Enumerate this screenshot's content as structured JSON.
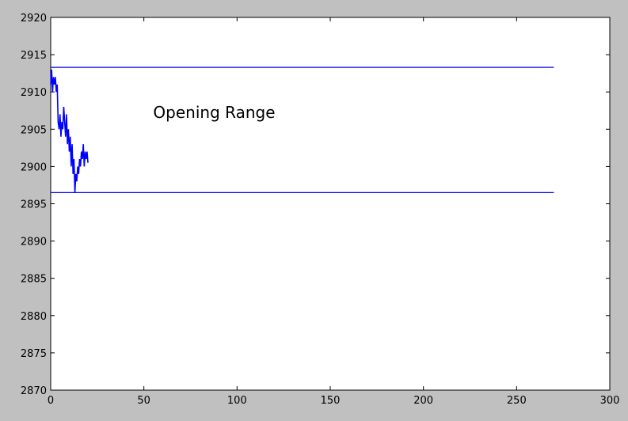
{
  "chart_data": {
    "type": "line",
    "title": "",
    "xlabel": "",
    "ylabel": "",
    "xlim": [
      0,
      300
    ],
    "ylim": [
      2870,
      2920
    ],
    "x_ticks": [
      0,
      50,
      100,
      150,
      200,
      250,
      300
    ],
    "y_ticks": [
      2870,
      2875,
      2880,
      2885,
      2890,
      2895,
      2900,
      2905,
      2910,
      2915,
      2920
    ],
    "x_tick_labels": [
      "0",
      "50",
      "100",
      "150",
      "200",
      "250",
      "300"
    ],
    "y_tick_labels": [
      "2870",
      "2875",
      "2880",
      "2885",
      "2890",
      "2895",
      "2900",
      "2905",
      "2910",
      "2915",
      "2920"
    ],
    "grid": false,
    "series": [
      {
        "color": "#0000ff",
        "x": [
          0,
          0.5,
          1,
          1.5,
          2,
          2.5,
          3,
          3.5,
          4,
          4.5,
          5,
          5.5,
          6,
          6.5,
          7,
          7.5,
          8,
          8.5,
          9,
          9.5,
          10,
          10.5,
          11,
          11.5,
          12,
          12.5,
          13,
          13.5,
          14,
          14.5,
          15,
          15.5,
          16,
          16.5,
          17,
          17.5,
          18,
          18.5,
          19,
          19.5,
          20
        ],
        "y": [
          2911,
          2913,
          2910,
          2912,
          2911,
          2912,
          2910,
          2911,
          2906,
          2905,
          2907,
          2904,
          2906,
          2905,
          2908,
          2906,
          2904,
          2907,
          2903,
          2905,
          2902,
          2904,
          2900,
          2903,
          2899,
          2901,
          2896.5,
          2899,
          2898,
          2900,
          2899,
          2901,
          2900,
          2902,
          2901,
          2903,
          2900,
          2902,
          2901,
          2902,
          2900.5
        ]
      },
      {
        "color": "#0000ff",
        "x": [
          0,
          270
        ],
        "y": [
          2913.3,
          2913.3
        ]
      },
      {
        "color": "#0000ff",
        "x": [
          0,
          270
        ],
        "y": [
          2896.5,
          2896.5
        ]
      }
    ],
    "annotations": [
      {
        "text": "Opening Range",
        "x": 55,
        "y": 2906.5
      }
    ]
  }
}
